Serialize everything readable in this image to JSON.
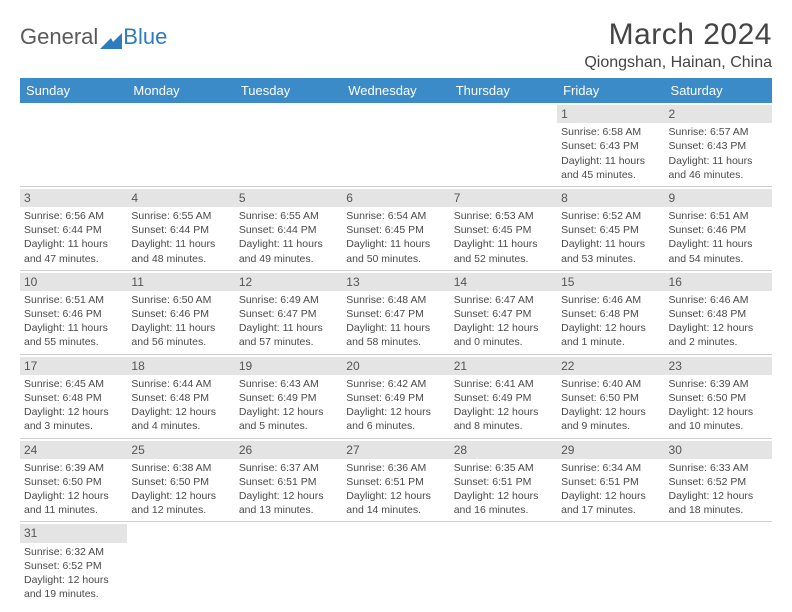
{
  "logo": {
    "general": "General",
    "blue": "Blue"
  },
  "title": "March 2024",
  "location": "Qiongshan, Hainan, China",
  "colors": {
    "header_bg": "#3b8bc9",
    "header_text": "#ffffff",
    "daynum_bg": "#e4e4e4",
    "border": "#d0d0d0",
    "text": "#4a4a4a"
  },
  "weekdays": [
    "Sunday",
    "Monday",
    "Tuesday",
    "Wednesday",
    "Thursday",
    "Friday",
    "Saturday"
  ],
  "weeks": [
    [
      {
        "empty": true
      },
      {
        "empty": true
      },
      {
        "empty": true
      },
      {
        "empty": true
      },
      {
        "empty": true
      },
      {
        "day": "1",
        "sunrise": "Sunrise: 6:58 AM",
        "sunset": "Sunset: 6:43 PM",
        "daylight1": "Daylight: 11 hours",
        "daylight2": "and 45 minutes."
      },
      {
        "day": "2",
        "sunrise": "Sunrise: 6:57 AM",
        "sunset": "Sunset: 6:43 PM",
        "daylight1": "Daylight: 11 hours",
        "daylight2": "and 46 minutes."
      }
    ],
    [
      {
        "day": "3",
        "sunrise": "Sunrise: 6:56 AM",
        "sunset": "Sunset: 6:44 PM",
        "daylight1": "Daylight: 11 hours",
        "daylight2": "and 47 minutes."
      },
      {
        "day": "4",
        "sunrise": "Sunrise: 6:55 AM",
        "sunset": "Sunset: 6:44 PM",
        "daylight1": "Daylight: 11 hours",
        "daylight2": "and 48 minutes."
      },
      {
        "day": "5",
        "sunrise": "Sunrise: 6:55 AM",
        "sunset": "Sunset: 6:44 PM",
        "daylight1": "Daylight: 11 hours",
        "daylight2": "and 49 minutes."
      },
      {
        "day": "6",
        "sunrise": "Sunrise: 6:54 AM",
        "sunset": "Sunset: 6:45 PM",
        "daylight1": "Daylight: 11 hours",
        "daylight2": "and 50 minutes."
      },
      {
        "day": "7",
        "sunrise": "Sunrise: 6:53 AM",
        "sunset": "Sunset: 6:45 PM",
        "daylight1": "Daylight: 11 hours",
        "daylight2": "and 52 minutes."
      },
      {
        "day": "8",
        "sunrise": "Sunrise: 6:52 AM",
        "sunset": "Sunset: 6:45 PM",
        "daylight1": "Daylight: 11 hours",
        "daylight2": "and 53 minutes."
      },
      {
        "day": "9",
        "sunrise": "Sunrise: 6:51 AM",
        "sunset": "Sunset: 6:46 PM",
        "daylight1": "Daylight: 11 hours",
        "daylight2": "and 54 minutes."
      }
    ],
    [
      {
        "day": "10",
        "sunrise": "Sunrise: 6:51 AM",
        "sunset": "Sunset: 6:46 PM",
        "daylight1": "Daylight: 11 hours",
        "daylight2": "and 55 minutes."
      },
      {
        "day": "11",
        "sunrise": "Sunrise: 6:50 AM",
        "sunset": "Sunset: 6:46 PM",
        "daylight1": "Daylight: 11 hours",
        "daylight2": "and 56 minutes."
      },
      {
        "day": "12",
        "sunrise": "Sunrise: 6:49 AM",
        "sunset": "Sunset: 6:47 PM",
        "daylight1": "Daylight: 11 hours",
        "daylight2": "and 57 minutes."
      },
      {
        "day": "13",
        "sunrise": "Sunrise: 6:48 AM",
        "sunset": "Sunset: 6:47 PM",
        "daylight1": "Daylight: 11 hours",
        "daylight2": "and 58 minutes."
      },
      {
        "day": "14",
        "sunrise": "Sunrise: 6:47 AM",
        "sunset": "Sunset: 6:47 PM",
        "daylight1": "Daylight: 12 hours",
        "daylight2": "and 0 minutes."
      },
      {
        "day": "15",
        "sunrise": "Sunrise: 6:46 AM",
        "sunset": "Sunset: 6:48 PM",
        "daylight1": "Daylight: 12 hours",
        "daylight2": "and 1 minute."
      },
      {
        "day": "16",
        "sunrise": "Sunrise: 6:46 AM",
        "sunset": "Sunset: 6:48 PM",
        "daylight1": "Daylight: 12 hours",
        "daylight2": "and 2 minutes."
      }
    ],
    [
      {
        "day": "17",
        "sunrise": "Sunrise: 6:45 AM",
        "sunset": "Sunset: 6:48 PM",
        "daylight1": "Daylight: 12 hours",
        "daylight2": "and 3 minutes."
      },
      {
        "day": "18",
        "sunrise": "Sunrise: 6:44 AM",
        "sunset": "Sunset: 6:48 PM",
        "daylight1": "Daylight: 12 hours",
        "daylight2": "and 4 minutes."
      },
      {
        "day": "19",
        "sunrise": "Sunrise: 6:43 AM",
        "sunset": "Sunset: 6:49 PM",
        "daylight1": "Daylight: 12 hours",
        "daylight2": "and 5 minutes."
      },
      {
        "day": "20",
        "sunrise": "Sunrise: 6:42 AM",
        "sunset": "Sunset: 6:49 PM",
        "daylight1": "Daylight: 12 hours",
        "daylight2": "and 6 minutes."
      },
      {
        "day": "21",
        "sunrise": "Sunrise: 6:41 AM",
        "sunset": "Sunset: 6:49 PM",
        "daylight1": "Daylight: 12 hours",
        "daylight2": "and 8 minutes."
      },
      {
        "day": "22",
        "sunrise": "Sunrise: 6:40 AM",
        "sunset": "Sunset: 6:50 PM",
        "daylight1": "Daylight: 12 hours",
        "daylight2": "and 9 minutes."
      },
      {
        "day": "23",
        "sunrise": "Sunrise: 6:39 AM",
        "sunset": "Sunset: 6:50 PM",
        "daylight1": "Daylight: 12 hours",
        "daylight2": "and 10 minutes."
      }
    ],
    [
      {
        "day": "24",
        "sunrise": "Sunrise: 6:39 AM",
        "sunset": "Sunset: 6:50 PM",
        "daylight1": "Daylight: 12 hours",
        "daylight2": "and 11 minutes."
      },
      {
        "day": "25",
        "sunrise": "Sunrise: 6:38 AM",
        "sunset": "Sunset: 6:50 PM",
        "daylight1": "Daylight: 12 hours",
        "daylight2": "and 12 minutes."
      },
      {
        "day": "26",
        "sunrise": "Sunrise: 6:37 AM",
        "sunset": "Sunset: 6:51 PM",
        "daylight1": "Daylight: 12 hours",
        "daylight2": "and 13 minutes."
      },
      {
        "day": "27",
        "sunrise": "Sunrise: 6:36 AM",
        "sunset": "Sunset: 6:51 PM",
        "daylight1": "Daylight: 12 hours",
        "daylight2": "and 14 minutes."
      },
      {
        "day": "28",
        "sunrise": "Sunrise: 6:35 AM",
        "sunset": "Sunset: 6:51 PM",
        "daylight1": "Daylight: 12 hours",
        "daylight2": "and 16 minutes."
      },
      {
        "day": "29",
        "sunrise": "Sunrise: 6:34 AM",
        "sunset": "Sunset: 6:51 PM",
        "daylight1": "Daylight: 12 hours",
        "daylight2": "and 17 minutes."
      },
      {
        "day": "30",
        "sunrise": "Sunrise: 6:33 AM",
        "sunset": "Sunset: 6:52 PM",
        "daylight1": "Daylight: 12 hours",
        "daylight2": "and 18 minutes."
      }
    ],
    [
      {
        "day": "31",
        "sunrise": "Sunrise: 6:32 AM",
        "sunset": "Sunset: 6:52 PM",
        "daylight1": "Daylight: 12 hours",
        "daylight2": "and 19 minutes."
      },
      {
        "empty": true
      },
      {
        "empty": true
      },
      {
        "empty": true
      },
      {
        "empty": true
      },
      {
        "empty": true
      },
      {
        "empty": true
      }
    ]
  ]
}
